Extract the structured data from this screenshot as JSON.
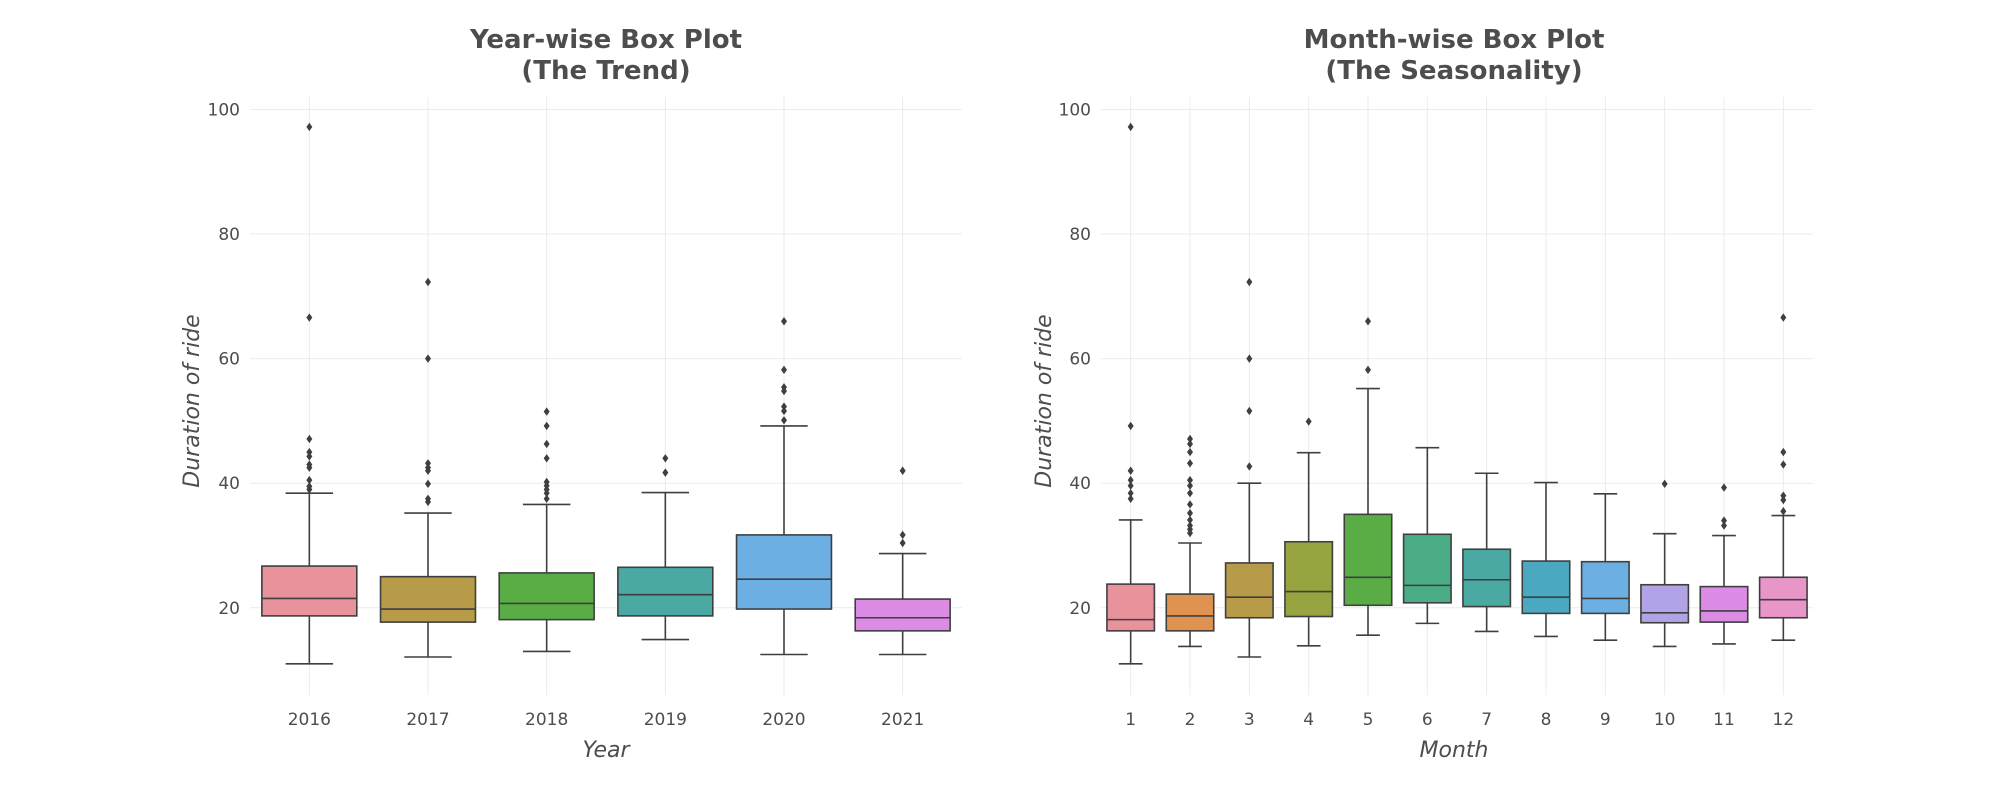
{
  "chart_data": [
    {
      "type": "box",
      "title_lines": [
        "Year-wise Box Plot",
        "(The Trend)"
      ],
      "xlabel": "Year",
      "ylabel": "Duration of ride",
      "ylim": [
        6,
        102
      ],
      "yticks": [
        20,
        40,
        60,
        80,
        100
      ],
      "grid": true,
      "categories": [
        "2016",
        "2017",
        "2018",
        "2019",
        "2020",
        "2021"
      ],
      "colors": [
        "#e8929c",
        "#b89b48",
        "#5aad45",
        "#4aa9a2",
        "#6cb0e3",
        "#dd8ce6"
      ],
      "boxes": [
        {
          "whisker_low": 11,
          "q1": 18.7,
          "median": 21.5,
          "q3": 26.7,
          "whisker_high": 38.4,
          "outliers": [
            97.2,
            66.6,
            47.1,
            45,
            44.3,
            43,
            42.5,
            40.5,
            39.5,
            39
          ]
        },
        {
          "whisker_low": 12.1,
          "q1": 17.7,
          "median": 19.8,
          "q3": 25,
          "whisker_high": 35.2,
          "outliers": [
            72.3,
            60,
            43.2,
            42.5,
            42,
            39.9,
            37.5,
            37
          ]
        },
        {
          "whisker_low": 13,
          "q1": 18.1,
          "median": 20.7,
          "q3": 25.6,
          "whisker_high": 36.6,
          "outliers": [
            51.5,
            49.2,
            46.3,
            44,
            40.2,
            39.6,
            39,
            38.4,
            37.5
          ]
        },
        {
          "whisker_low": 14.9,
          "q1": 18.7,
          "median": 22.1,
          "q3": 26.5,
          "whisker_high": 38.5,
          "outliers": [
            44,
            41.7
          ]
        },
        {
          "whisker_low": 12.5,
          "q1": 19.8,
          "median": 24.6,
          "q3": 31.7,
          "whisker_high": 49.2,
          "outliers": [
            66,
            58.2,
            55.4,
            54.8,
            52.3,
            51.6,
            50.1
          ]
        },
        {
          "whisker_low": 12.5,
          "q1": 16.3,
          "median": 18.4,
          "q3": 21.4,
          "whisker_high": 28.7,
          "outliers": [
            42,
            31.7,
            30.4
          ]
        }
      ]
    },
    {
      "type": "box",
      "title_lines": [
        "Month-wise Box Plot",
        "(The Seasonality)"
      ],
      "xlabel": "Month",
      "ylabel": "Duration of ride",
      "ylim": [
        6,
        102
      ],
      "yticks": [
        20,
        40,
        60,
        80,
        100
      ],
      "grid": true,
      "categories": [
        "1",
        "2",
        "3",
        "4",
        "5",
        "6",
        "7",
        "8",
        "9",
        "10",
        "11",
        "12"
      ],
      "colors": [
        "#e8929c",
        "#e09350",
        "#b89b48",
        "#97a43f",
        "#5aad45",
        "#4aad85",
        "#4aa9a2",
        "#4aa9c0",
        "#6cb0e3",
        "#b2a2e6",
        "#dd8ce6",
        "#e896c8"
      ],
      "boxes": [
        {
          "whisker_low": 11,
          "q1": 16.3,
          "median": 18.1,
          "q3": 23.8,
          "whisker_high": 34.1,
          "outliers": [
            97.2,
            49.2,
            42,
            40.5,
            39.6,
            38.4,
            37.5
          ]
        },
        {
          "whisker_low": 13.8,
          "q1": 16.3,
          "median": 18.7,
          "q3": 22.2,
          "whisker_high": 30.4,
          "outliers": [
            47.1,
            46.3,
            45,
            43.2,
            40.5,
            39.6,
            38.4,
            36.6,
            35.2,
            34.1,
            33.2,
            32.6,
            32
          ]
        },
        {
          "whisker_low": 12.1,
          "q1": 18.4,
          "median": 21.7,
          "q3": 27.2,
          "whisker_high": 40,
          "outliers": [
            72.3,
            60,
            51.6,
            42.7
          ]
        },
        {
          "whisker_low": 13.9,
          "q1": 18.6,
          "median": 22.6,
          "q3": 30.6,
          "whisker_high": 44.9,
          "outliers": [
            49.9
          ]
        },
        {
          "whisker_low": 15.6,
          "q1": 20.4,
          "median": 24.9,
          "q3": 35,
          "whisker_high": 55.2,
          "outliers": [
            66,
            58.2
          ]
        },
        {
          "whisker_low": 17.5,
          "q1": 20.8,
          "median": 23.6,
          "q3": 31.8,
          "whisker_high": 45.7,
          "outliers": []
        },
        {
          "whisker_low": 16.2,
          "q1": 20.2,
          "median": 24.5,
          "q3": 29.4,
          "whisker_high": 41.6,
          "outliers": []
        },
        {
          "whisker_low": 15.4,
          "q1": 19.1,
          "median": 21.7,
          "q3": 27.5,
          "whisker_high": 40.1,
          "outliers": []
        },
        {
          "whisker_low": 14.8,
          "q1": 19.1,
          "median": 21.5,
          "q3": 27.4,
          "whisker_high": 38.3,
          "outliers": []
        },
        {
          "whisker_low": 13.8,
          "q1": 17.6,
          "median": 19.2,
          "q3": 23.7,
          "whisker_high": 31.9,
          "outliers": [
            39.9
          ]
        },
        {
          "whisker_low": 14.2,
          "q1": 17.7,
          "median": 19.5,
          "q3": 23.4,
          "whisker_high": 31.6,
          "outliers": [
            39.3,
            34,
            33.2
          ]
        },
        {
          "whisker_low": 14.8,
          "q1": 18.4,
          "median": 21.3,
          "q3": 24.9,
          "whisker_high": 34.8,
          "outliers": [
            66.6,
            45,
            43,
            38,
            37.3,
            35.5
          ]
        }
      ]
    }
  ]
}
